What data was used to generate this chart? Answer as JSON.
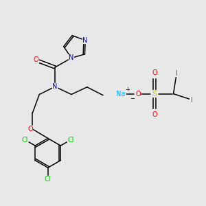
{
  "background_color": "#e8e8e8",
  "bond_color": "#000000",
  "o_color": "#ff0000",
  "n_color": "#0000cc",
  "cl_color": "#00cc00",
  "s_color": "#cccc00",
  "na_color": "#00aaff",
  "i_color": "#cc00cc",
  "font_size": 7.0,
  "fig_width": 3.0,
  "fig_height": 3.0,
  "dpi": 100,
  "xlim": [
    0,
    10
  ],
  "ylim": [
    0,
    10
  ]
}
